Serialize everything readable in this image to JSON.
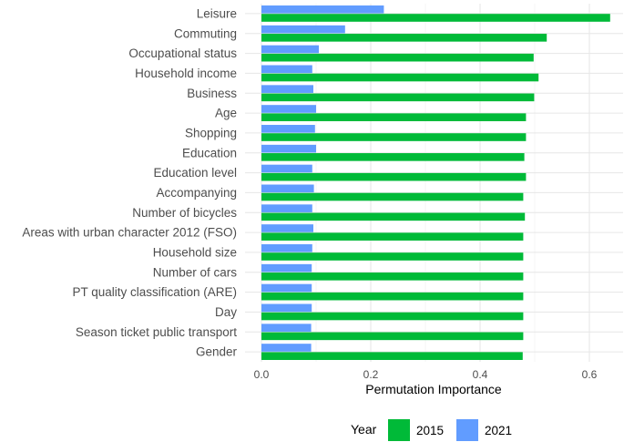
{
  "chart_data": {
    "type": "bar",
    "orientation": "horizontal",
    "title": "",
    "xlabel": "Permutation Importance",
    "ylabel": "",
    "xlim": [
      -0.03,
      0.69
    ],
    "xticks": [
      0.0,
      0.2,
      0.4,
      0.6
    ],
    "xtick_labels": [
      "0.0",
      "0.2",
      "0.4",
      "0.6"
    ],
    "grid": true,
    "legend": {
      "title": "Year",
      "position": "bottom"
    },
    "categories": [
      "Leisure",
      "Commuting",
      "Occupational status",
      "Household income",
      "Business",
      "Age",
      "Shopping",
      "Education",
      "Education level",
      "Accompanying",
      "Number of bicycles",
      "Areas with urban character 2012 (FSO)",
      "Household size",
      "Number of cars",
      "PT quality classification (ARE)",
      "Day",
      "Season ticket public transport",
      "Gender"
    ],
    "series": [
      {
        "name": "2015",
        "color": "#00BA38",
        "values": [
          0.638,
          0.522,
          0.498,
          0.507,
          0.499,
          0.484,
          0.484,
          0.481,
          0.484,
          0.479,
          0.482,
          0.479,
          0.479,
          0.479,
          0.479,
          0.479,
          0.479,
          0.478
        ]
      },
      {
        "name": "2021",
        "color": "#619CFF",
        "values": [
          0.224,
          0.153,
          0.105,
          0.093,
          0.095,
          0.1,
          0.098,
          0.1,
          0.093,
          0.096,
          0.093,
          0.095,
          0.093,
          0.092,
          0.092,
          0.092,
          0.091,
          0.091
        ]
      }
    ]
  }
}
